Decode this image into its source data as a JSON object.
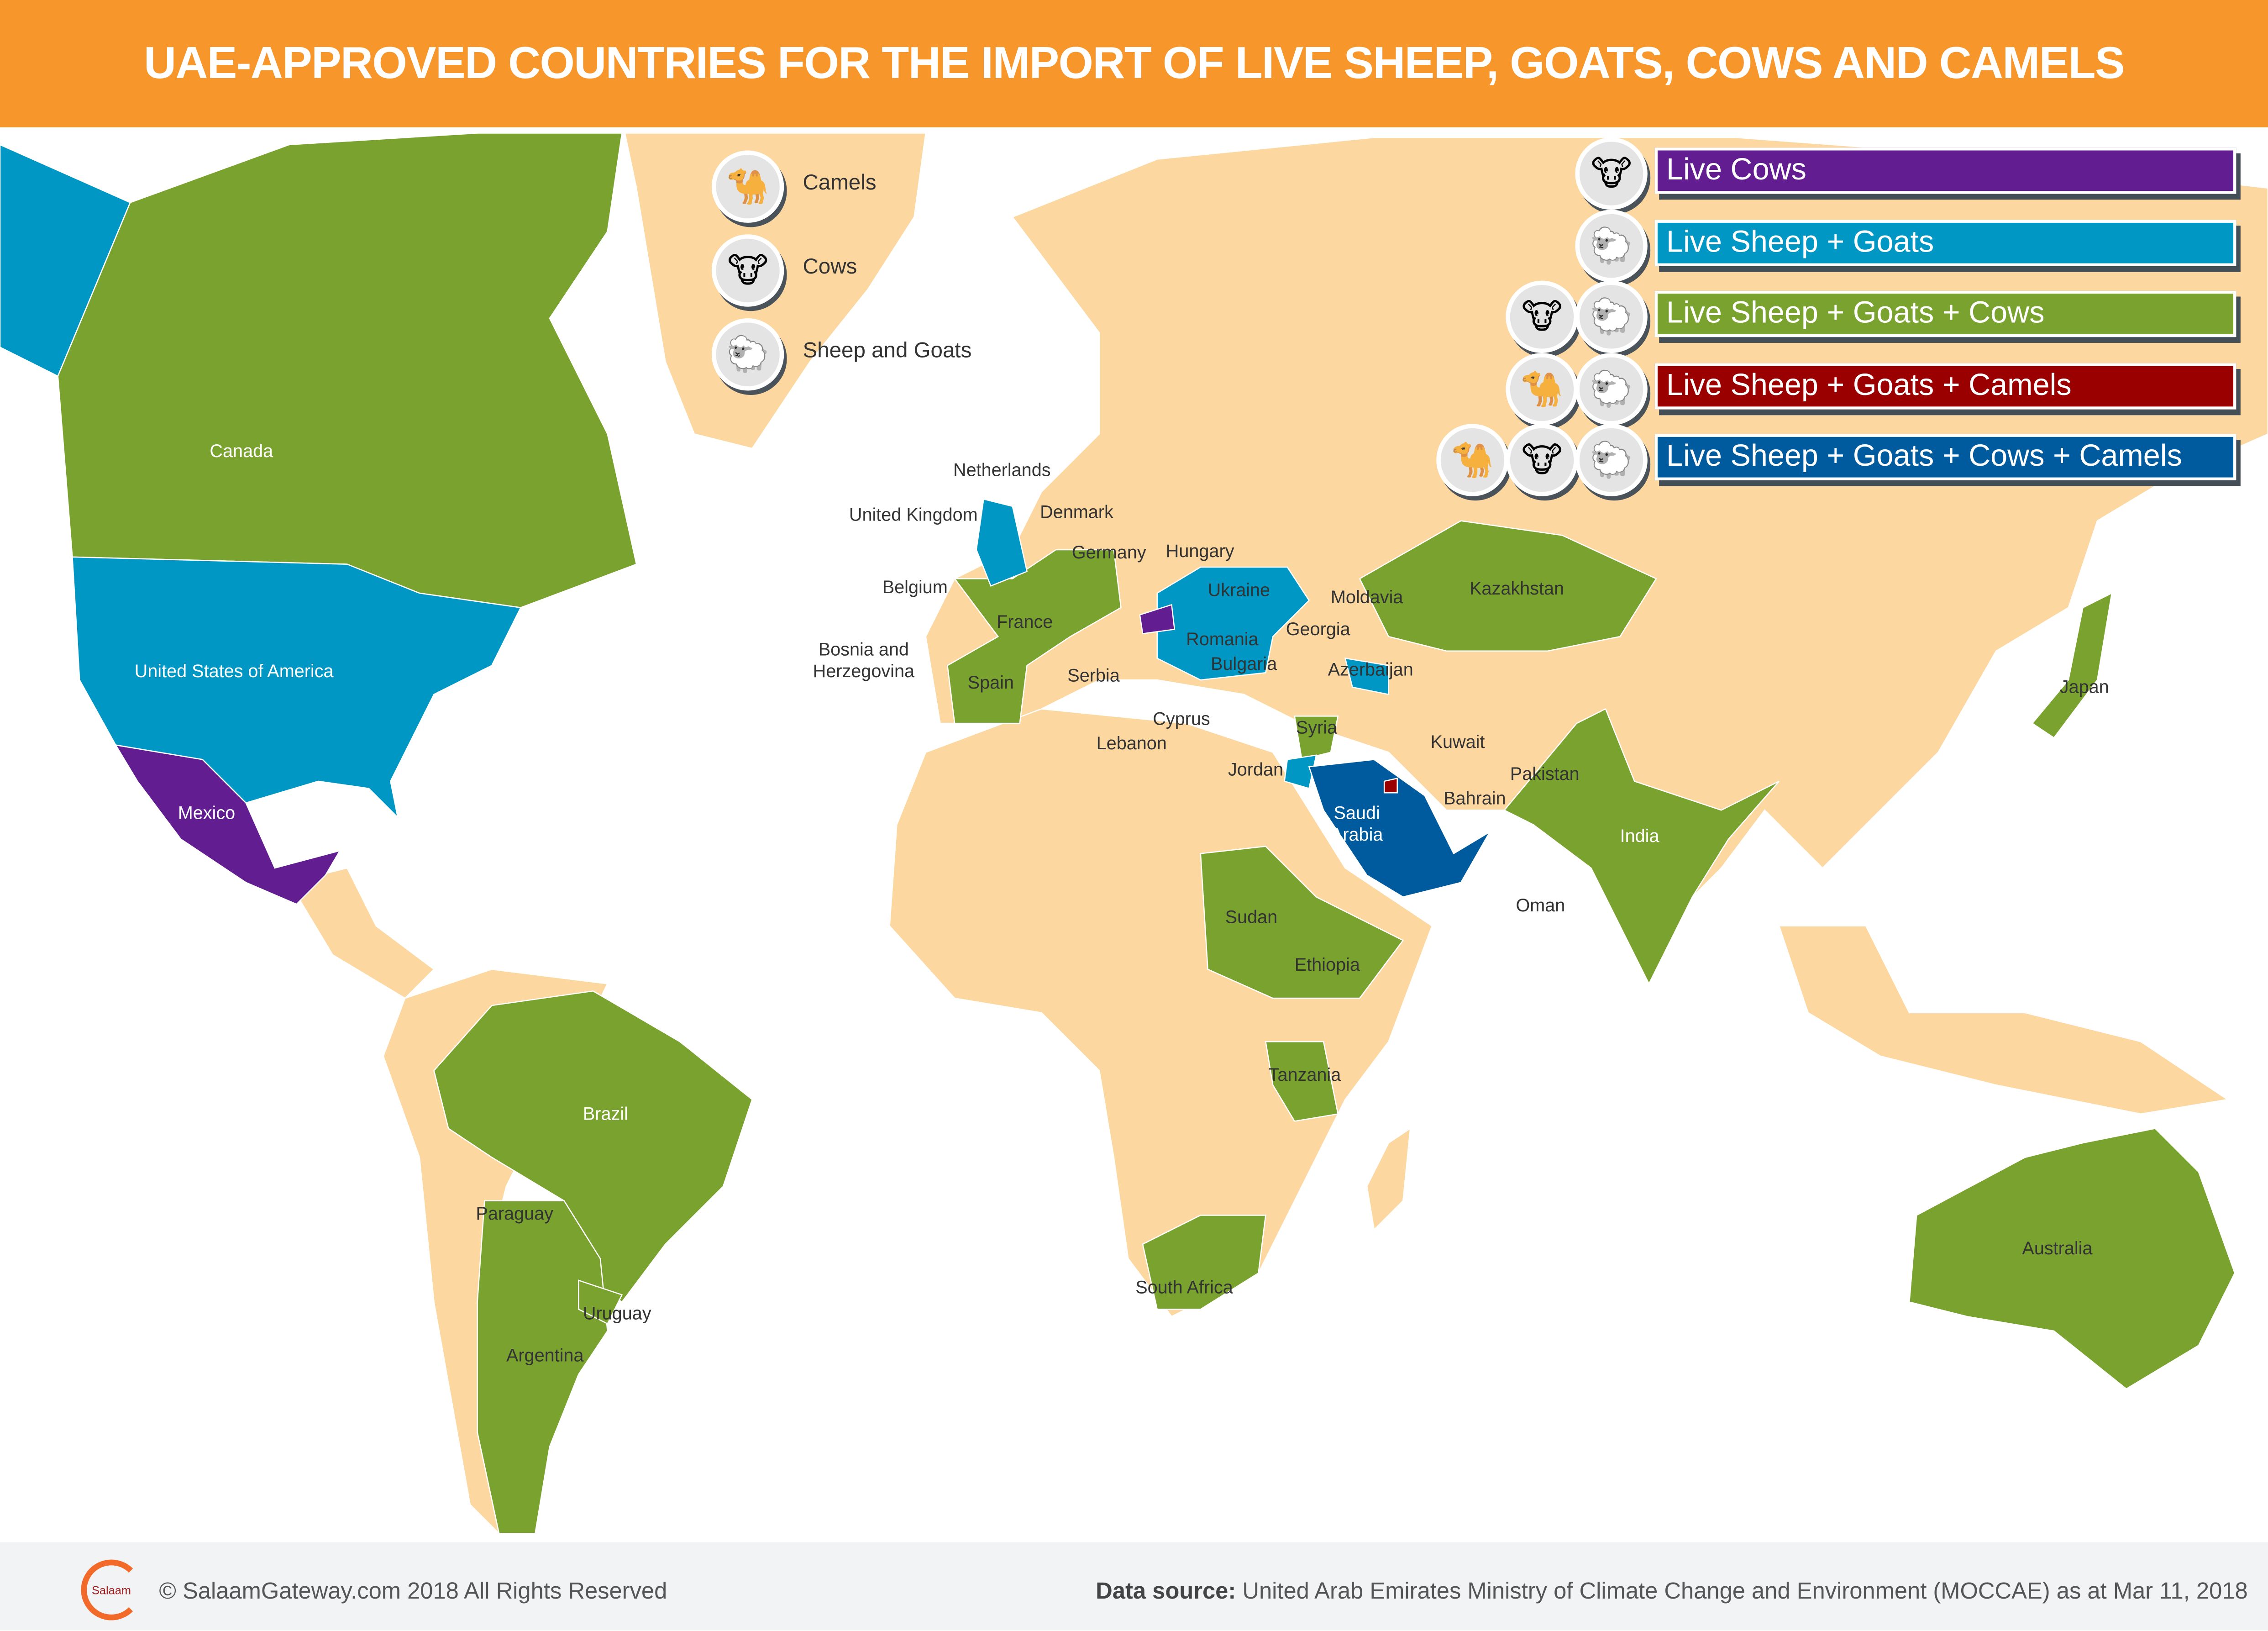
{
  "title": "UAE-APPROVED COUNTRIES FOR THE IMPORT OF LIVE SHEEP, GOATS, COWS AND CAMELS",
  "colors": {
    "header": "#f7962a",
    "land": "#fdd7a0",
    "live_cows": "#621d91",
    "live_sheep_goats": "#0097c4",
    "live_sheep_goats_cows": "#79a22f",
    "live_sheep_goats_camels": "#9b0000",
    "live_sheep_goats_cows_camels": "#005a9e",
    "water": "#6bbfe0"
  },
  "icon_key": [
    {
      "icon": "camel-icon",
      "label": "Camels"
    },
    {
      "icon": "cow-icon",
      "label": "Cows"
    },
    {
      "icon": "sheep-icon",
      "label": "Sheep and Goats"
    }
  ],
  "legend": [
    {
      "label": "Live Cows",
      "icons": [
        "cow-icon"
      ]
    },
    {
      "label": "Live Sheep +  Goats",
      "icons": [
        "sheep-icon"
      ]
    },
    {
      "label": "Live Sheep +  Goats + Cows",
      "icons": [
        "cow-icon",
        "sheep-icon"
      ]
    },
    {
      "label": "Live Sheep + Goats + Camels",
      "icons": [
        "camel-icon",
        "sheep-icon"
      ]
    },
    {
      "label": "Live Sheep + Goats + Cows + Camels",
      "icons": [
        "camel-icon",
        "cow-icon",
        "sheep-icon"
      ]
    }
  ],
  "countries": {
    "live_cows": [
      "Mexico",
      "Hungary"
    ],
    "live_sheep_goats": [
      "United States of America",
      "United Kingdom",
      "Netherlands",
      "Belgium",
      "Denmark",
      "Ukraine",
      "Romania",
      "Bulgaria",
      "Serbia",
      "Bosnia and Herzegovina",
      "Moldavia",
      "Georgia",
      "Azerbaijan",
      "Cyprus",
      "Lebanon",
      "Jordan"
    ],
    "live_sheep_goats_cows": [
      "Canada",
      "Brazil",
      "Paraguay",
      "Uruguay",
      "Argentina",
      "France",
      "Germany",
      "Spain",
      "Kazakhstan",
      "Syria",
      "Pakistan",
      "India",
      "Sudan",
      "Ethiopia",
      "Tanzania",
      "South Africa",
      "Australia",
      "Japan"
    ],
    "live_sheep_goats_camels": [
      "Kuwait",
      "Bahrain"
    ],
    "live_sheep_goats_cows_camels": [
      "Saudi Arabia",
      "Oman"
    ]
  },
  "labels": [
    "Canada",
    "United States of America",
    "Mexico",
    "Brazil",
    "Paraguay",
    "Uruguay",
    "Argentina",
    "Netherlands",
    "United Kingdom",
    "Denmark",
    "Germany",
    "Hungary",
    "Belgium",
    "France",
    "Bosnia and\nHerzegovina",
    "Spain",
    "Serbia",
    "Ukraine",
    "Moldavia",
    "Romania",
    "Georgia",
    "Bulgaria",
    "Azerbaijan",
    "Kazakhstan",
    "Cyprus",
    "Lebanon",
    "Syria",
    "Jordan",
    "Kuwait",
    "Pakistan",
    "Bahrain",
    "Saudi\nArabia",
    "India",
    "Oman",
    "Sudan",
    "Ethiopia",
    "Tanzania",
    "South Africa",
    "Australia",
    "Japan"
  ],
  "footer": {
    "logo_text": "Salaam",
    "copyright": "© SalaamGateway.com 2018 All Rights Reserved",
    "source_label": "Data source:",
    "source_text": " United Arab Emirates Ministry of Climate Change and Environment (MOCCAE) as at Mar 11, 2018"
  }
}
